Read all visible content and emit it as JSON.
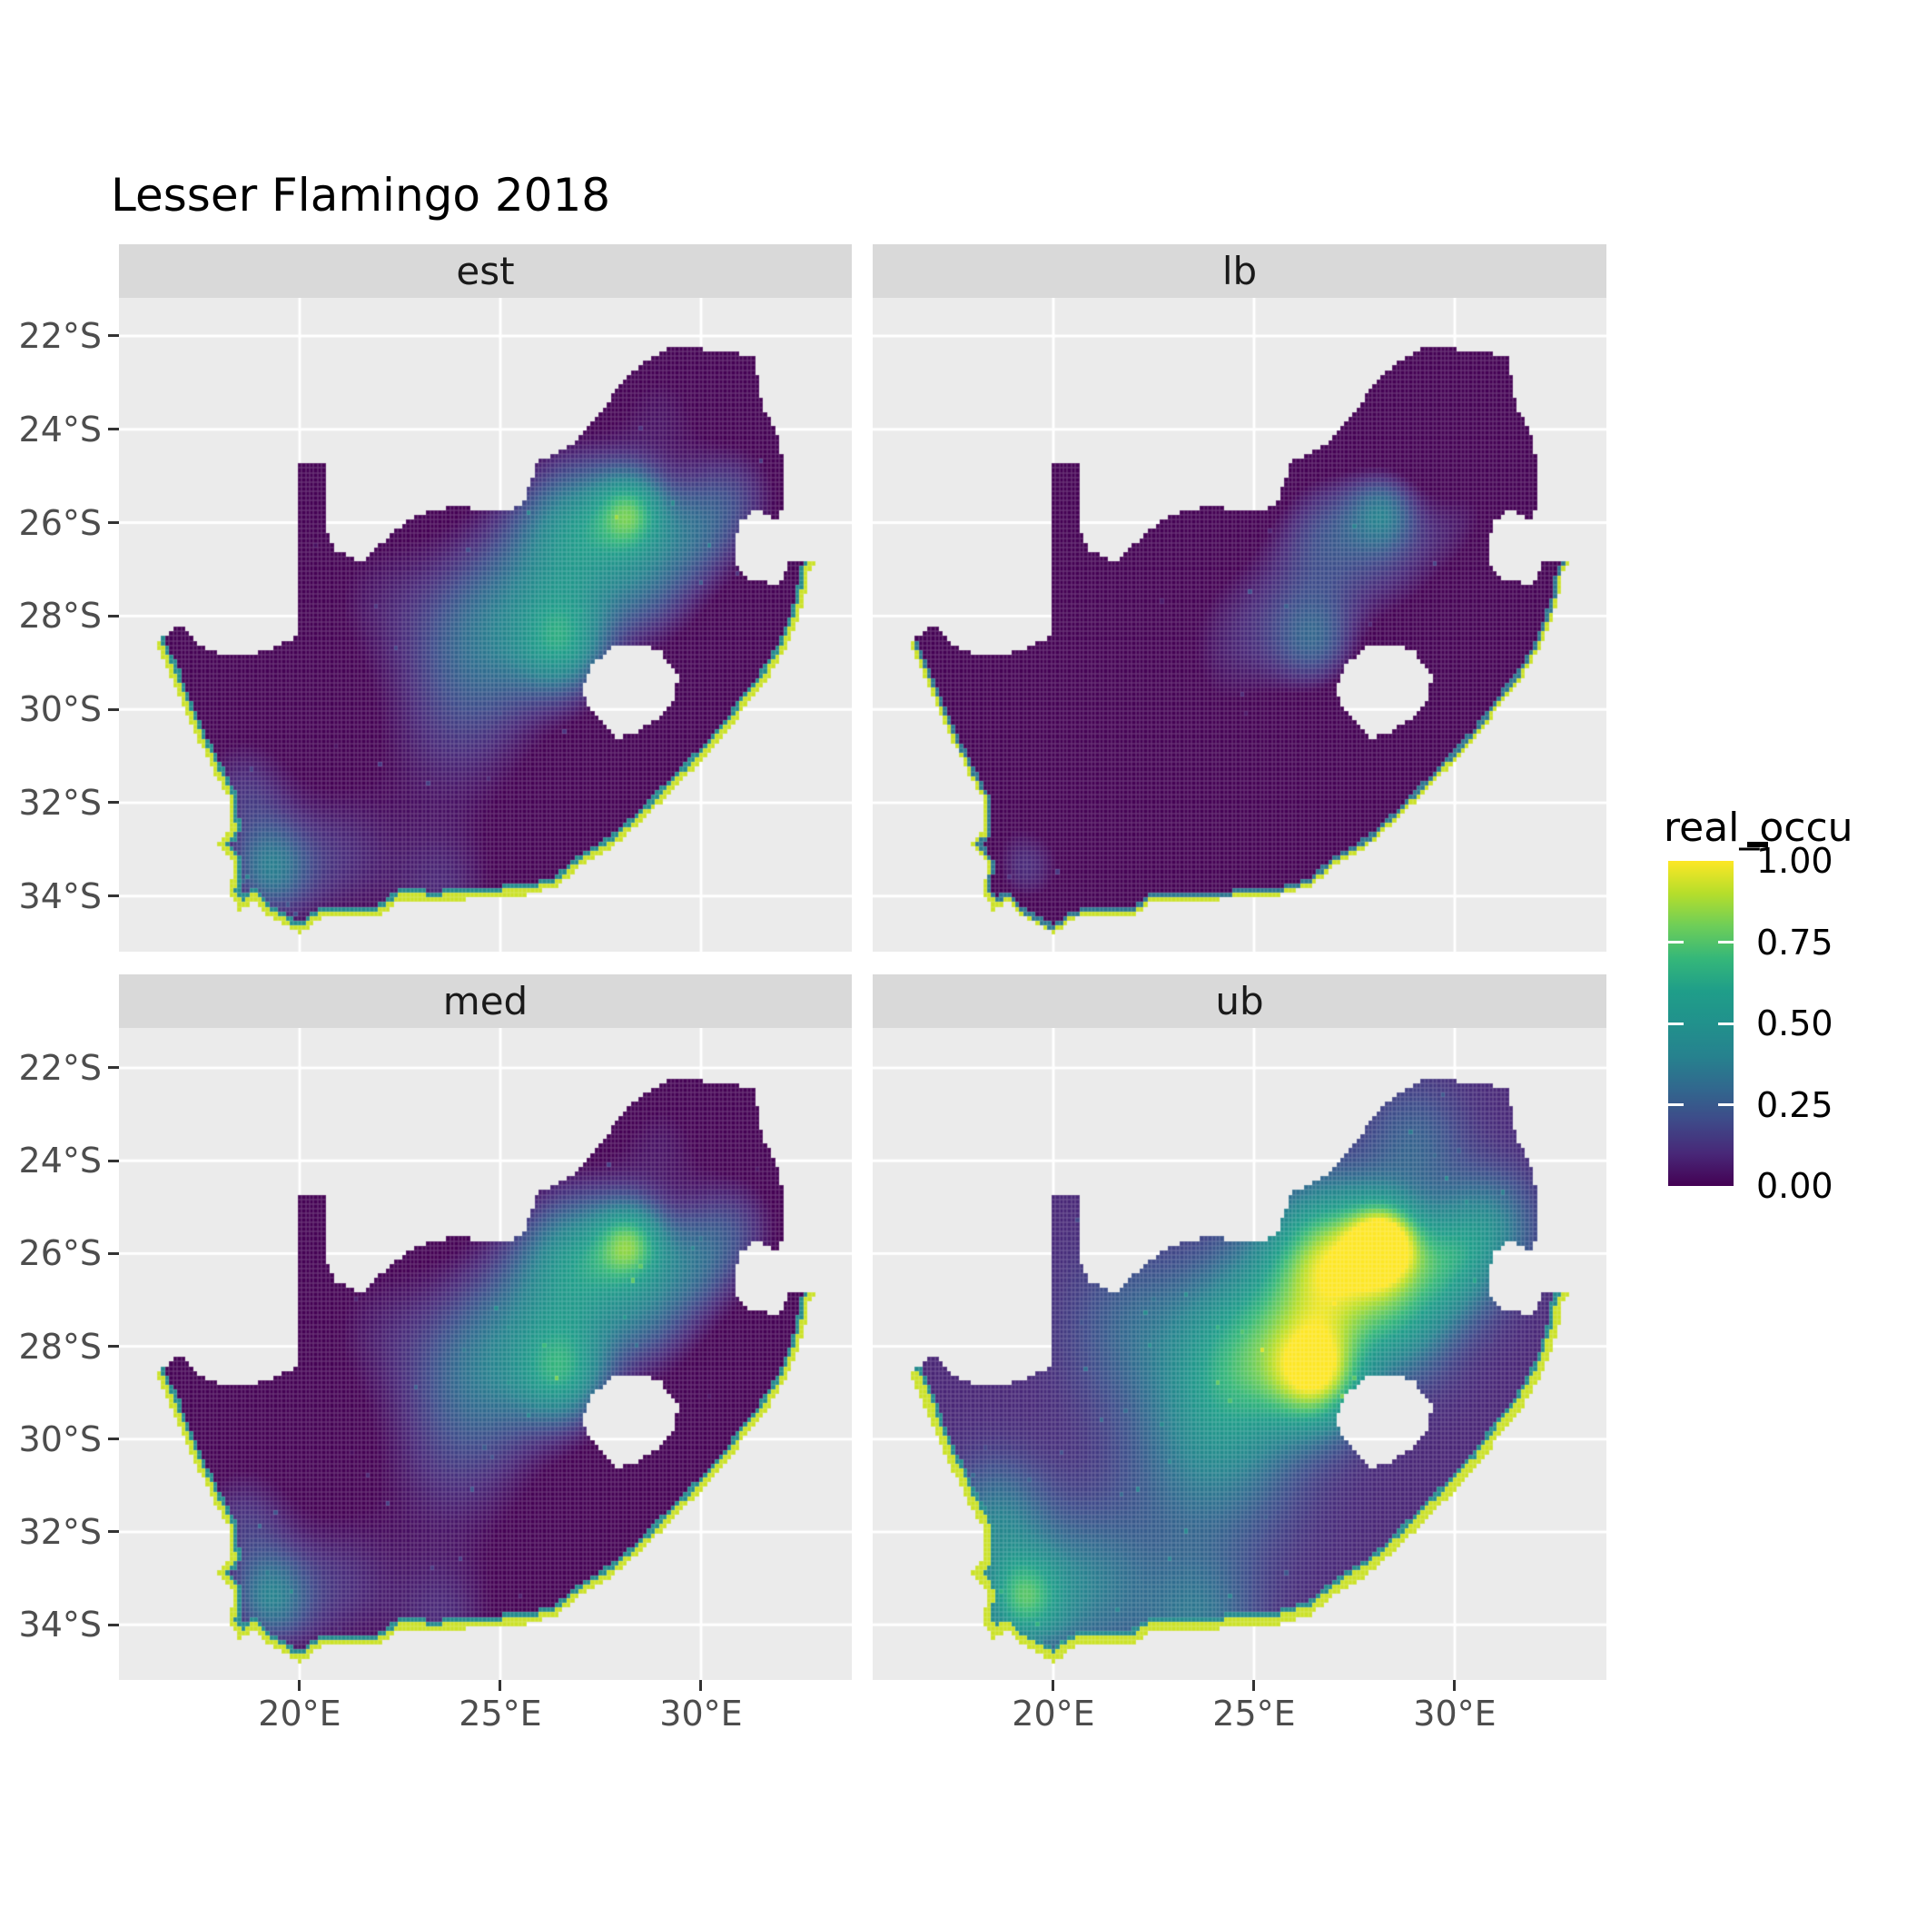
{
  "title": "Lesser Flamingo 2018",
  "facets": [
    {
      "label": "est"
    },
    {
      "label": "lb"
    },
    {
      "label": "med"
    },
    {
      "label": "ub"
    }
  ],
  "legend": {
    "title": "real_occu",
    "entries": [
      {
        "label": "1.00",
        "value": 1.0
      },
      {
        "label": "0.75",
        "value": 0.75
      },
      {
        "label": "0.50",
        "value": 0.5
      },
      {
        "label": "0.25",
        "value": 0.25
      },
      {
        "label": "0.00",
        "value": 0.0
      }
    ]
  },
  "colors": {
    "background": "#ffffff",
    "panel_bg": "#ebebeb",
    "strip_bg": "#d9d9d9",
    "gridline": "#ffffff",
    "axis_text": "#4d4d4d",
    "tick_mark": "#333333",
    "title_text": "#000000",
    "viridis_low": "#440154",
    "viridis_mid": "#21918c",
    "viridis_high": "#fde725"
  },
  "chart_data": {
    "type": "heatmap",
    "subtype": "faceted_raster_map",
    "title": "Lesser Flamingo 2018",
    "region": "South Africa",
    "value_variable": "real_occu",
    "value_range": [
      0,
      1
    ],
    "palette": "viridis",
    "legend_position": "right",
    "grid": "on",
    "cell_size_deg": 0.1,
    "x_axis": {
      "tick_labels": [
        "20°E",
        "25°E",
        "30°E"
      ],
      "tick_values": [
        20,
        25,
        30
      ]
    },
    "y_axis": {
      "tick_labels": [
        "22°S",
        "24°S",
        "26°S",
        "28°S",
        "30°S",
        "32°S",
        "34°S"
      ],
      "tick_values": [
        -22,
        -24,
        -26,
        -28,
        -30,
        -32,
        -34
      ]
    },
    "lon_range": [
      15.5,
      33.75
    ],
    "lat_range": [
      -35.2,
      -21.18
    ],
    "facets": [
      {
        "label": "est",
        "row": 0,
        "col": 0,
        "intensity": "low-moderate occupancy",
        "gain": 1.02,
        "offset": -0.02,
        "fringe_width_deg": 0.13,
        "seed": 11
      },
      {
        "label": "lb",
        "row": 0,
        "col": 1,
        "intensity": "very low occupancy",
        "gain": 0.7,
        "offset": -0.15,
        "fringe_width_deg": 0.08,
        "seed": 23
      },
      {
        "label": "med",
        "row": 1,
        "col": 0,
        "intensity": "low-moderate occupancy",
        "gain": 1.06,
        "offset": -0.02,
        "fringe_width_deg": 0.13,
        "seed": 37
      },
      {
        "label": "ub",
        "row": 1,
        "col": 1,
        "intensity": "moderate-high occupancy",
        "gain": 1.42,
        "offset": 0.17,
        "fringe_width_deg": 0.19,
        "seed": 53
      }
    ],
    "hotspots": [
      [
        27.0,
        -26.2,
        1.1,
        0.55
      ],
      [
        28.25,
        -25.75,
        0.6,
        0.5
      ],
      [
        26.6,
        -28.6,
        0.8,
        0.5
      ],
      [
        25.2,
        -27.6,
        1.3,
        0.25
      ],
      [
        29.8,
        -26.2,
        0.85,
        0.3
      ],
      [
        23.8,
        -30.6,
        1.5,
        0.16
      ],
      [
        19.25,
        -33.45,
        0.7,
        0.38
      ],
      [
        18.6,
        -31.8,
        0.9,
        0.2
      ],
      [
        20.9,
        -33.2,
        1.1,
        0.18
      ],
      [
        23.6,
        -33.9,
        1.0,
        0.16
      ],
      [
        24.5,
        -28.8,
        1.2,
        0.2
      ],
      [
        28.6,
        -27.4,
        0.9,
        0.25
      ],
      [
        30.9,
        -25.4,
        0.8,
        0.18
      ],
      [
        29.0,
        -23.6,
        0.9,
        0.12
      ],
      [
        22.0,
        -27.6,
        1.2,
        0.12
      ]
    ],
    "boundary_coast": [
      [
        16.45,
        -28.6
      ],
      [
        16.78,
        -29.25
      ],
      [
        17.05,
        -29.85
      ],
      [
        17.35,
        -30.45
      ],
      [
        17.85,
        -31.3
      ],
      [
        18.25,
        -31.95
      ],
      [
        18.28,
        -32.6
      ],
      [
        17.95,
        -32.85
      ],
      [
        18.35,
        -33.3
      ],
      [
        18.25,
        -33.95
      ],
      [
        18.48,
        -34.15
      ],
      [
        18.4,
        -34.35
      ],
      [
        18.85,
        -34.1
      ],
      [
        19.15,
        -34.4
      ],
      [
        19.65,
        -34.65
      ],
      [
        20.0,
        -34.83
      ],
      [
        20.55,
        -34.47
      ],
      [
        21.2,
        -34.42
      ],
      [
        21.95,
        -34.45
      ],
      [
        22.55,
        -34.08
      ],
      [
        23.35,
        -34.12
      ],
      [
        24.2,
        -34.08
      ],
      [
        24.85,
        -34.02
      ],
      [
        25.65,
        -33.98
      ],
      [
        26.45,
        -33.78
      ],
      [
        27.1,
        -33.3
      ],
      [
        27.95,
        -32.85
      ],
      [
        28.65,
        -32.3
      ],
      [
        29.3,
        -31.72
      ],
      [
        29.95,
        -31.15
      ],
      [
        30.65,
        -30.5
      ],
      [
        31.15,
        -29.9
      ],
      [
        31.7,
        -29.3
      ],
      [
        32.05,
        -28.8
      ],
      [
        32.35,
        -28.25
      ],
      [
        32.58,
        -27.65
      ],
      [
        32.7,
        -27.05
      ],
      [
        32.9,
        -26.86
      ]
    ],
    "boundary_inland": [
      [
        32.2,
        -26.84
      ],
      [
        31.97,
        -27.32
      ],
      [
        31.15,
        -27.2
      ],
      [
        30.8,
        -26.82
      ],
      [
        30.95,
        -26.0
      ],
      [
        31.35,
        -25.72
      ],
      [
        31.98,
        -25.96
      ],
      [
        32.06,
        -25.1
      ],
      [
        31.98,
        -24.3
      ],
      [
        31.55,
        -23.5
      ],
      [
        31.3,
        -22.42
      ],
      [
        30.25,
        -22.3
      ],
      [
        29.37,
        -22.19
      ],
      [
        28.55,
        -22.58
      ],
      [
        27.95,
        -23.05
      ],
      [
        27.5,
        -23.65
      ],
      [
        26.85,
        -24.28
      ],
      [
        25.9,
        -24.72
      ],
      [
        25.55,
        -25.65
      ],
      [
        24.9,
        -25.78
      ],
      [
        23.9,
        -25.62
      ],
      [
        22.85,
        -25.85
      ],
      [
        22.15,
        -26.35
      ],
      [
        21.55,
        -26.85
      ],
      [
        20.9,
        -26.6
      ],
      [
        20.68,
        -26.15
      ],
      [
        20.64,
        -24.78
      ],
      [
        19.99,
        -24.78
      ],
      [
        19.99,
        -28.4
      ],
      [
        19.25,
        -28.72
      ],
      [
        18.55,
        -28.86
      ],
      [
        17.9,
        -28.78
      ],
      [
        17.38,
        -28.56
      ],
      [
        17.05,
        -28.18
      ],
      [
        16.7,
        -28.4
      ]
    ],
    "lesotho_hole": [
      [
        27.02,
        -29.58
      ],
      [
        27.3,
        -29.05
      ],
      [
        27.75,
        -28.68
      ],
      [
        28.35,
        -28.58
      ],
      [
        28.95,
        -28.72
      ],
      [
        29.45,
        -29.3
      ],
      [
        29.3,
        -29.8
      ],
      [
        28.95,
        -30.18
      ],
      [
        28.35,
        -30.52
      ],
      [
        27.9,
        -30.62
      ],
      [
        27.55,
        -30.28
      ],
      [
        27.2,
        -29.95
      ]
    ]
  }
}
